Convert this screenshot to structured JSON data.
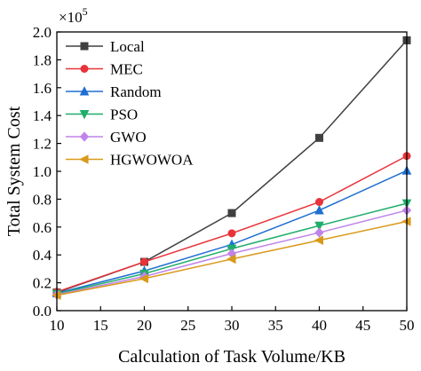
{
  "chart_data": {
    "type": "line",
    "xlabel": "Calculation of Task Volume/KB",
    "ylabel": "Total System Cost",
    "y_multiplier": {
      "base": "×10",
      "exponent": "5"
    },
    "xlim": [
      10,
      50
    ],
    "ylim": [
      0.0,
      2.0
    ],
    "x_ticks": [
      "10",
      "15",
      "20",
      "25",
      "30",
      "35",
      "40",
      "45",
      "50"
    ],
    "y_ticks": [
      "0.0",
      "0.2",
      "0.4",
      "0.6",
      "0.8",
      "1.0",
      "1.2",
      "1.4",
      "1.6",
      "1.8",
      "2.0"
    ],
    "grid": false,
    "legend_position": "top-left",
    "x": [
      10,
      20,
      30,
      40,
      50
    ],
    "series": [
      {
        "name": "Local",
        "color": "#404040",
        "marker": "square",
        "values": [
          0.13,
          0.35,
          0.7,
          1.24,
          1.94
        ]
      },
      {
        "name": "MEC",
        "color": "#e8333a",
        "marker": "circle",
        "values": [
          0.135,
          0.35,
          0.555,
          0.78,
          1.11
        ]
      },
      {
        "name": "Random",
        "color": "#1f6fd1",
        "marker": "triangle-up",
        "values": [
          0.125,
          0.285,
          0.475,
          0.72,
          1.005
        ]
      },
      {
        "name": "PSO",
        "color": "#1fae6a",
        "marker": "triangle-down",
        "values": [
          0.12,
          0.265,
          0.445,
          0.61,
          0.77
        ]
      },
      {
        "name": "GWO",
        "color": "#c084e8",
        "marker": "diamond",
        "values": [
          0.115,
          0.245,
          0.41,
          0.56,
          0.72
        ]
      },
      {
        "name": "HGWOWOA",
        "color": "#d99a1a",
        "marker": "triangle-left",
        "values": [
          0.11,
          0.23,
          0.37,
          0.505,
          0.64
        ]
      }
    ]
  }
}
